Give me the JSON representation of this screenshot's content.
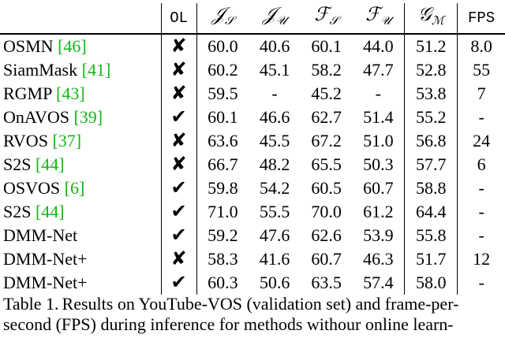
{
  "headers": {
    "method": "",
    "ol": "OL",
    "js": "𝒥",
    "js_sub": "𝒮",
    "ju": "𝒥",
    "ju_sub": "𝒰",
    "fs": "ℱ",
    "fs_sub": "𝒮",
    "fu": "ℱ",
    "fu_sub": "𝒰",
    "gm": "𝒢",
    "gm_sub": "ℳ",
    "fps": "FPS"
  },
  "rows": [
    {
      "name": "OSMN ",
      "ref": "[46]",
      "ol": "✘",
      "js": "60.0",
      "ju": "40.6",
      "fs": "60.1",
      "fu": "44.0",
      "gm": "51.2",
      "fps": "8.0"
    },
    {
      "name": "SiamMask ",
      "ref": "[41]",
      "ol": "✘",
      "js": "60.2",
      "ju": "45.1",
      "fs": "58.2",
      "fu": "47.7",
      "gm": "52.8",
      "fps": "55"
    },
    {
      "name": "RGMP ",
      "ref": "[43]",
      "ol": "✘",
      "js": "59.5",
      "ju": "-",
      "fs": "45.2",
      "fu": "-",
      "gm": "53.8",
      "fps": "7"
    },
    {
      "name": "OnAVOS ",
      "ref": "[39]",
      "ol": "✔",
      "js": "60.1",
      "ju": "46.6",
      "fs": "62.7",
      "fu": "51.4",
      "gm": "55.2",
      "fps": "-"
    },
    {
      "name": "RVOS ",
      "ref": "[37]",
      "ol": "✘",
      "js": "63.6",
      "ju": "45.5",
      "fs": "67.2",
      "fu": "51.0",
      "gm": "56.8",
      "fps": "24"
    },
    {
      "name": "S2S ",
      "ref": "[44]",
      "ol": "✘",
      "js": "66.7",
      "ju": "48.2",
      "fs": "65.5",
      "fu": "50.3",
      "gm": "57.7",
      "fps": "6"
    },
    {
      "name": "OSVOS ",
      "ref": "[6]",
      "ol": "✔",
      "js": "59.8",
      "ju": "54.2",
      "fs": "60.5",
      "fu": "60.7",
      "gm": "58.8",
      "fps": "-"
    },
    {
      "name": "S2S ",
      "ref": "[44]",
      "ol": "✔",
      "js": "71.0",
      "ju": "55.5",
      "fs": "70.0",
      "fu": "61.2",
      "gm": "64.4",
      "fps": "-"
    },
    {
      "name": "DMM-Net",
      "ref": "",
      "ol": "✔",
      "js": "59.2",
      "ju": "47.6",
      "fs": "62.6",
      "fu": "53.9",
      "gm": "55.8",
      "fps": "-"
    },
    {
      "name": "DMM-Net+",
      "ref": "",
      "ol": "✘",
      "js": "58.3",
      "ju": "41.6",
      "fs": "60.7",
      "fu": "46.3",
      "gm": "51.7",
      "fps": "12"
    },
    {
      "name": "DMM-Net+",
      "ref": "",
      "ol": "✔",
      "js": "60.3",
      "ju": "50.6",
      "fs": "63.5",
      "fu": "57.4",
      "gm": "58.0",
      "fps": "-"
    }
  ],
  "caption": {
    "label": "Table 1.",
    "text": "Results on YouTube-VOS (validation set) and frame-per-second (FPS) during inference for methods withour online learn-"
  }
}
